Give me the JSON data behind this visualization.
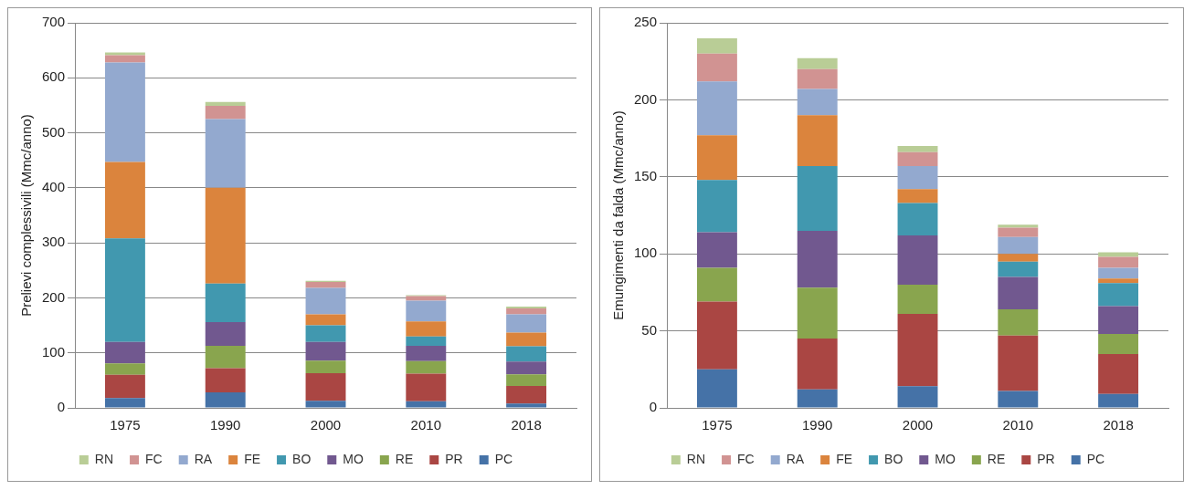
{
  "chart_data": [
    {
      "type": "bar",
      "stacked": true,
      "ylabel": "Prelievi complessivili (Mmc/anno)",
      "categories": [
        "1975",
        "1990",
        "2000",
        "2010",
        "2018"
      ],
      "ylim": [
        0,
        700
      ],
      "yticks": [
        0,
        100,
        200,
        300,
        400,
        500,
        600,
        700
      ],
      "grid": "y",
      "legend": "bottom",
      "series": [
        {
          "name": "PC",
          "color": "#4572a7",
          "values": [
            18,
            28,
            13,
            12,
            8
          ]
        },
        {
          "name": "PR",
          "color": "#aa4643",
          "values": [
            42,
            44,
            50,
            50,
            32
          ]
        },
        {
          "name": "RE",
          "color": "#89a54e",
          "values": [
            21,
            41,
            23,
            23,
            21
          ]
        },
        {
          "name": "MO",
          "color": "#71588f",
          "values": [
            39,
            43,
            34,
            28,
            23
          ]
        },
        {
          "name": "BO",
          "color": "#4198af",
          "values": [
            188,
            70,
            30,
            17,
            28
          ]
        },
        {
          "name": "FE",
          "color": "#db843d",
          "values": [
            139,
            174,
            20,
            27,
            25
          ]
        },
        {
          "name": "RA",
          "color": "#93a9cf",
          "values": [
            181,
            125,
            48,
            38,
            33
          ]
        },
        {
          "name": "FC",
          "color": "#d19392",
          "values": [
            13,
            24,
            11,
            8,
            11
          ]
        },
        {
          "name": "RN",
          "color": "#b9cd96",
          "values": [
            5,
            7,
            2,
            2,
            3
          ]
        }
      ]
    },
    {
      "type": "bar",
      "stacked": true,
      "ylabel": "Emungimenti da falda (Mmc/anno)",
      "categories": [
        "1975",
        "1990",
        "2000",
        "2010",
        "2018"
      ],
      "ylim": [
        0,
        250
      ],
      "yticks": [
        0,
        50,
        100,
        150,
        200,
        250
      ],
      "grid": "y",
      "legend": "bottom",
      "series": [
        {
          "name": "PC",
          "color": "#4572a7",
          "values": [
            25,
            12,
            14,
            11,
            9
          ]
        },
        {
          "name": "PR",
          "color": "#aa4643",
          "values": [
            44,
            33,
            47,
            36,
            26
          ]
        },
        {
          "name": "RE",
          "color": "#89a54e",
          "values": [
            22,
            33,
            19,
            17,
            13
          ]
        },
        {
          "name": "MO",
          "color": "#71588f",
          "values": [
            23,
            37,
            32,
            21,
            18
          ]
        },
        {
          "name": "BO",
          "color": "#4198af",
          "values": [
            34,
            42,
            21,
            10,
            15
          ]
        },
        {
          "name": "FE",
          "color": "#db843d",
          "values": [
            29,
            33,
            9,
            5,
            3
          ]
        },
        {
          "name": "RA",
          "color": "#93a9cf",
          "values": [
            35,
            17,
            15,
            11,
            7
          ]
        },
        {
          "name": "FC",
          "color": "#d19392",
          "values": [
            18,
            13,
            9,
            6,
            7
          ]
        },
        {
          "name": "RN",
          "color": "#b9cd96",
          "values": [
            10,
            7,
            4,
            2,
            3
          ]
        }
      ]
    }
  ]
}
